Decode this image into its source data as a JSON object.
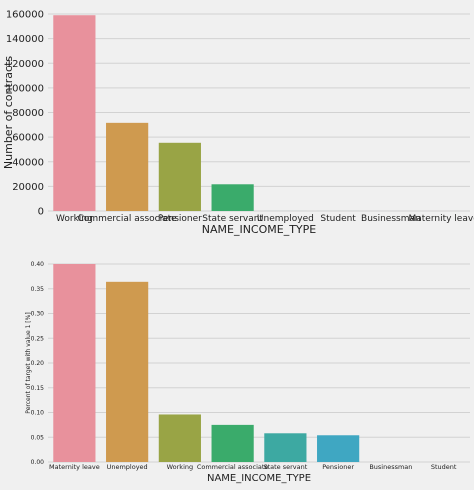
{
  "chart_data": [
    {
      "type": "bar",
      "ylabel": "Number of contracts",
      "xlabel": "NAME_INCOME_TYPE",
      "ylim": [
        0,
        160000
      ],
      "yticks": [
        0,
        20000,
        40000,
        60000,
        80000,
        100000,
        120000,
        140000,
        160000
      ],
      "ytick_labels": [
        "0",
        "20000",
        "40000",
        "60000",
        "80000",
        "100000",
        "120000",
        "140000",
        "160000"
      ],
      "grid": true,
      "categories": [
        "Working",
        "Commercial associate",
        "Pensioner",
        "State servant",
        "Unemployed",
        "Student",
        "Businessman",
        "Maternity leave"
      ],
      "values": [
        159000,
        71600,
        55400,
        21700,
        23,
        18,
        10,
        5
      ],
      "colors": [
        "#e8919c",
        "#cf9a4f",
        "#99a445",
        "#3aab6b",
        "#3da9a2",
        "#3fa7c2",
        "#9aa7e5",
        "#e38fd8"
      ]
    },
    {
      "type": "bar",
      "ylabel": "Percent of target with value 1 [%]",
      "xlabel": "NAME_INCOME_TYPE",
      "ylim": [
        0,
        0.4
      ],
      "yticks": [
        0,
        0.05,
        0.1,
        0.15,
        0.2,
        0.25,
        0.3,
        0.35,
        0.4
      ],
      "ytick_labels": [
        "0.00",
        "0.05",
        "0.10",
        "0.15",
        "0.20",
        "0.25",
        "0.30",
        "0.35",
        "0.40"
      ],
      "grid": true,
      "categories": [
        "Maternity leave",
        "Unemployed",
        "Working",
        "Commercial associate",
        "State servant",
        "Pensioner",
        "Businessman",
        "Student"
      ],
      "values": [
        0.4,
        0.364,
        0.096,
        0.075,
        0.058,
        0.054,
        0.0,
        0.0
      ],
      "colors": [
        "#e8919c",
        "#cf9a4f",
        "#99a445",
        "#3aab6b",
        "#3da9a2",
        "#3fa7c2",
        "#9aa7e5",
        "#e38fd8"
      ]
    }
  ]
}
